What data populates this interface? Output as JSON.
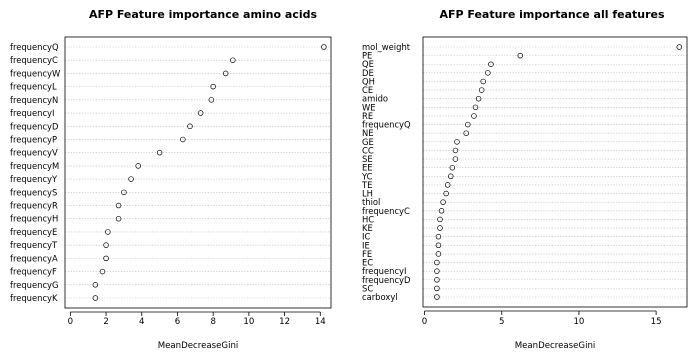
{
  "chart_data": [
    {
      "type": "scatter",
      "title": "AFP Feature importance amino acids",
      "xlabel": "MeanDecreaseGini",
      "ylabel": "",
      "xlim": [
        -0.3,
        14.6
      ],
      "xticks": [
        0,
        2,
        4,
        6,
        8,
        10,
        12,
        14
      ],
      "grid": "horizontal dotted",
      "labels": [
        "frequencyQ",
        "frequencyC",
        "frequencyW",
        "frequencyL",
        "frequencyN",
        "frequencyI",
        "frequencyD",
        "frequencyP",
        "frequencyV",
        "frequencyM",
        "frequencyY",
        "frequencyS",
        "frequencyR",
        "frequencyH",
        "frequencyE",
        "frequencyT",
        "frequencyA",
        "frequencyF",
        "frequencyG",
        "frequencyK"
      ],
      "values": [
        14.2,
        9.1,
        8.7,
        8.0,
        7.9,
        7.3,
        6.7,
        6.3,
        5.0,
        3.8,
        3.4,
        3.0,
        2.7,
        2.7,
        2.1,
        2.0,
        2.0,
        1.8,
        1.4,
        1.4
      ]
    },
    {
      "type": "scatter",
      "title": "AFP Feature importance all features",
      "xlabel": "MeanDecreaseGini",
      "ylabel": "",
      "xlim": [
        -0.1,
        17.0
      ],
      "xticks": [
        0,
        5,
        10,
        15
      ],
      "grid": "horizontal dotted",
      "labels": [
        "mol_weight",
        "PE",
        "QE",
        "DE",
        "QH",
        "CE",
        "amido",
        "WE",
        "RE",
        "frequencyQ",
        "NE",
        "GE",
        "CC",
        "SE",
        "EE",
        "YC",
        "TE",
        "LH",
        "thiol",
        "frequencyC",
        "HC",
        "KE",
        "IC",
        "IE",
        "FE",
        "EC",
        "frequencyI",
        "frequencyD",
        "SC",
        "carboxyl"
      ],
      "values": [
        16.5,
        6.2,
        4.3,
        4.1,
        3.8,
        3.7,
        3.5,
        3.3,
        3.2,
        2.8,
        2.7,
        2.1,
        2.0,
        2.0,
        1.8,
        1.7,
        1.5,
        1.4,
        1.2,
        1.1,
        1.0,
        1.0,
        0.9,
        0.9,
        0.9,
        0.8,
        0.8,
        0.8,
        0.8,
        0.8
      ]
    }
  ]
}
